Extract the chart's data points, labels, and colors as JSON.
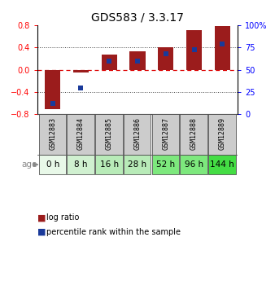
{
  "title": "GDS583 / 3.3.17",
  "samples": [
    "GSM12883",
    "GSM12884",
    "GSM12885",
    "GSM12886",
    "GSM12887",
    "GSM12888",
    "GSM12889"
  ],
  "ages": [
    "0 h",
    "8 h",
    "16 h",
    "28 h",
    "52 h",
    "96 h",
    "144 h"
  ],
  "log_ratio": [
    -0.71,
    -0.05,
    0.28,
    0.33,
    0.41,
    0.72,
    0.78
  ],
  "percentile_rank": [
    12,
    30,
    60,
    60,
    68,
    73,
    79
  ],
  "bar_color": "#9B1C1C",
  "dot_color": "#1A3A9A",
  "ylim_left": [
    -0.8,
    0.8
  ],
  "ylim_right": [
    0,
    100
  ],
  "yticks_left": [
    -0.8,
    -0.4,
    0.0,
    0.4,
    0.8
  ],
  "yticks_right": [
    0,
    25,
    50,
    75,
    100
  ],
  "ytick_labels_right": [
    "0",
    "25",
    "50",
    "75",
    "100%"
  ],
  "hline_color_red": "#DD0000",
  "dotline_color": "#444444",
  "age_colors": [
    "#e8f8e8",
    "#d0f0d0",
    "#b8ebb8",
    "#b8ebb8",
    "#7de87d",
    "#7de87d",
    "#44dd44"
  ],
  "legend_log_ratio": "log ratio",
  "legend_percentile": "percentile rank within the sample",
  "age_label": "age"
}
